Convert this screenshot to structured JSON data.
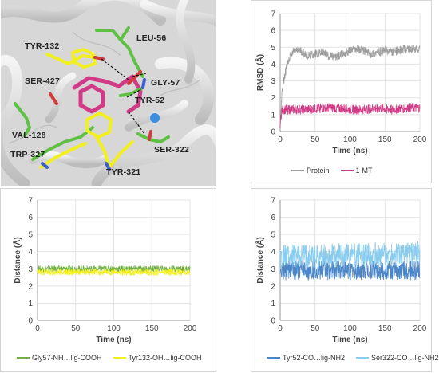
{
  "molecule": {
    "labels": [
      "TYR-132",
      "LEU-56",
      "SER-427",
      "GLY-57",
      "TYR-52",
      "VAL-128",
      "TRP-327",
      "SER-322",
      "TYR-321"
    ]
  },
  "colors": {
    "grey": "#9e9e9e",
    "magenta": "#d13a86",
    "green": "#72b043",
    "yellow": "#f2ef1e",
    "blue": "#4a86c8",
    "lightblue": "#88ccef"
  },
  "chart_data": [
    {
      "type": "line",
      "xlabel": "Time (ns)",
      "ylabel": "RMSD (Å)",
      "xlim": [
        0,
        200
      ],
      "ylim": [
        0,
        7
      ],
      "xticks": [
        "0",
        "50",
        "100",
        "150",
        "200"
      ],
      "yticks": [
        "0",
        "1",
        "2",
        "3",
        "4",
        "5",
        "6",
        "7"
      ],
      "grid": true,
      "legend": "bottom",
      "series": [
        {
          "name": "Protein",
          "color": "#9e9e9e",
          "x": [
            0,
            2,
            5,
            10,
            15,
            20,
            30,
            40,
            50,
            60,
            70,
            80,
            90,
            100,
            110,
            120,
            130,
            140,
            150,
            160,
            170,
            180,
            190,
            200
          ],
          "values": [
            0.3,
            2.0,
            3.0,
            4.0,
            4.5,
            4.8,
            4.8,
            4.5,
            4.6,
            4.7,
            4.5,
            4.4,
            4.6,
            4.8,
            4.9,
            4.8,
            4.6,
            4.7,
            4.8,
            4.7,
            4.8,
            4.9,
            4.9,
            4.9
          ]
        },
        {
          "name": "1-MT",
          "color": "#d13a86",
          "x": [
            0,
            2,
            5,
            10,
            20,
            40,
            60,
            80,
            100,
            120,
            140,
            160,
            180,
            200
          ],
          "values": [
            0.5,
            1.2,
            1.3,
            1.3,
            1.3,
            1.3,
            1.4,
            1.4,
            1.3,
            1.3,
            1.4,
            1.3,
            1.4,
            1.4
          ]
        }
      ]
    },
    {
      "type": "line",
      "xlabel": "Time (ns)",
      "ylabel": "Distance (Å)",
      "xlim": [
        0,
        200
      ],
      "ylim": [
        0,
        7
      ],
      "xticks": [
        "0",
        "50",
        "100",
        "150",
        "200"
      ],
      "yticks": [
        "0",
        "1",
        "2",
        "3",
        "4",
        "5",
        "6",
        "7"
      ],
      "grid": true,
      "legend": "bottom",
      "series": [
        {
          "name": "Gly57-NH…lig-COOH",
          "color": "#72b043",
          "x": [
            0,
            200
          ],
          "values": [
            3.0,
            3.0
          ]
        },
        {
          "name": "Tyr132-OH…lig-COOH",
          "color": "#f2ef1e",
          "x": [
            0,
            200
          ],
          "values": [
            2.8,
            2.8
          ]
        }
      ]
    },
    {
      "type": "line",
      "xlabel": "Time (ns)",
      "ylabel": "Distance (Å)",
      "xlim": [
        0,
        200
      ],
      "ylim": [
        0,
        7
      ],
      "xticks": [
        "0",
        "50",
        "100",
        "150",
        "200"
      ],
      "yticks": [
        "0",
        "1",
        "2",
        "3",
        "4",
        "5",
        "6",
        "7"
      ],
      "grid": true,
      "legend": "bottom",
      "series": [
        {
          "name": "Tyr52-CO…lig-NH2",
          "color": "#4a86c8",
          "x": [
            0,
            200
          ],
          "values": [
            2.9,
            2.9
          ]
        },
        {
          "name": "Ser322-CO…lig-NH2",
          "color": "#88ccef",
          "x": [
            0,
            200
          ],
          "values": [
            3.7,
            3.9
          ]
        }
      ]
    }
  ]
}
